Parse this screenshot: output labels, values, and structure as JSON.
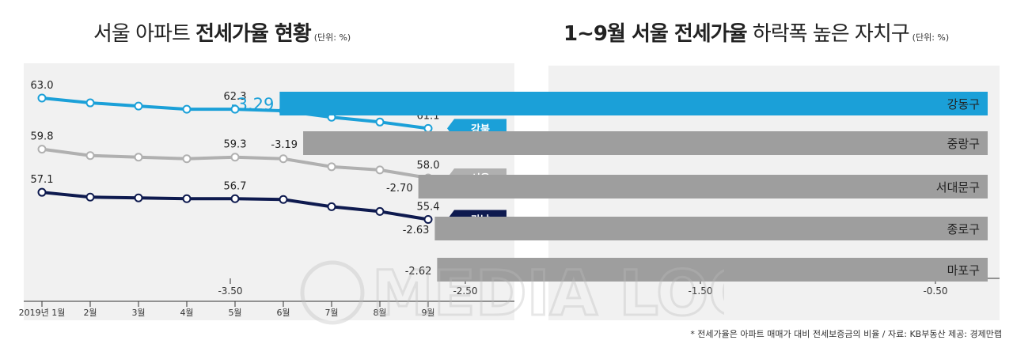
{
  "left_title": {
    "normal": "서울 아파트 ",
    "bold": "전세가율 현황",
    "unit": "(단위: %)"
  },
  "right_title": {
    "bold": "1~9월 서울 전세가율",
    "normal": " 하락폭 높은 자치구",
    "unit": "(단위: %)"
  },
  "footnote": "* 전세가율은 아파트 매매가 대비 전세보증금의 비율 / 자료: KB부동산 제공: 경제만랩",
  "watermark": "MEDIA LOOK",
  "colors": {
    "gangbuk": "#1ba0d8",
    "seoul": "#b0b0b0",
    "gangnam": "#0e1a4f",
    "bar_top": "#1ba0d8",
    "bar": "#9e9e9e"
  },
  "chart_data": [
    {
      "type": "line",
      "categories": [
        "2019년 1월",
        "2월",
        "3월",
        "4월",
        "5월",
        "6월",
        "7월",
        "8월",
        "9월"
      ],
      "series": [
        {
          "name": "강북",
          "values": [
            63.0,
            62.7,
            62.5,
            62.3,
            62.3,
            62.2,
            61.8,
            61.5,
            61.1
          ],
          "labels": [
            "63.0",
            "",
            "",
            "",
            "62.3",
            "",
            "",
            "",
            "61.1"
          ]
        },
        {
          "name": "서울",
          "values": [
            59.8,
            59.4,
            59.3,
            59.2,
            59.3,
            59.2,
            58.7,
            58.5,
            58.0
          ],
          "labels": [
            "59.8",
            "",
            "",
            "",
            "59.3",
            "",
            "",
            "",
            "58.0"
          ]
        },
        {
          "name": "강남",
          "values": [
            57.1,
            56.8,
            56.75,
            56.7,
            56.7,
            56.65,
            56.2,
            55.9,
            55.4
          ],
          "labels": [
            "57.1",
            "",
            "",
            "",
            "56.7",
            "",
            "",
            "",
            "55.4"
          ]
        }
      ]
    },
    {
      "type": "bar",
      "orientation": "horizontal",
      "categories": [
        "강동구",
        "중랑구",
        "서대문구",
        "종로구",
        "마포구"
      ],
      "values": [
        -3.29,
        -3.19,
        -2.7,
        -2.63,
        -2.62
      ],
      "value_labels": [
        "-3.29",
        "-3.19",
        "-2.70",
        "-2.63",
        "-2.62"
      ],
      "xticks": [
        "-3.50",
        "-2.50",
        "-1.50",
        "-0.50"
      ],
      "xtick_values": [
        -3.5,
        -2.5,
        -1.5,
        -0.5
      ]
    }
  ]
}
